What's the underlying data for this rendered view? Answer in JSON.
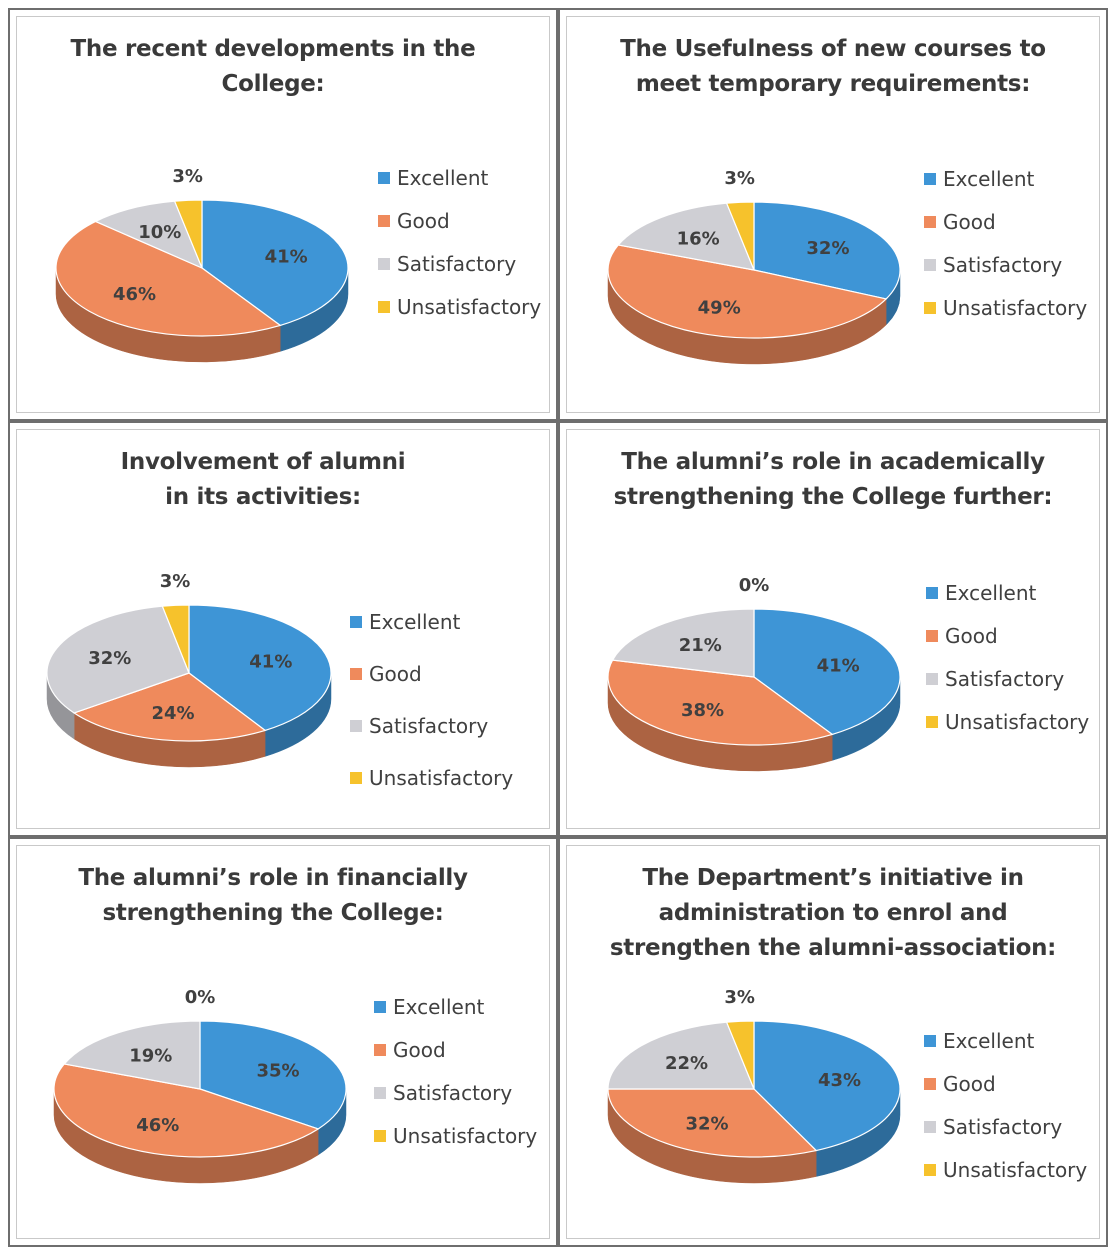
{
  "colors": {
    "Excellent": "#3e95d6",
    "Good": "#ef8a5c",
    "Satisfactory": "#cfcfd4",
    "Unsatisfactory": "#f6c22c"
  },
  "chart_data": [
    {
      "type": "pie",
      "title": "The recent developments in the College:",
      "categories": [
        "Excellent",
        "Good",
        "Satisfactory",
        "Unsatisfactory"
      ],
      "values": [
        41,
        46,
        10,
        3
      ],
      "data_labels": [
        "41%",
        "46%",
        "10%",
        "3%"
      ],
      "legend": [
        "Excellent",
        "Good",
        "Satisfactory",
        "Unsatisfactory"
      ],
      "legend_position": "right",
      "style": "3d"
    },
    {
      "type": "pie",
      "title": "The Usefulness of new courses to meet temporary requirements:",
      "categories": [
        "Excellent",
        "Good",
        "Satisfactory",
        "Unsatisfactory"
      ],
      "values": [
        32,
        49,
        16,
        3
      ],
      "data_labels": [
        "32%",
        "49%",
        "16%",
        "3%"
      ],
      "legend": [
        "Excellent",
        "Good",
        "Satisfactory",
        "Unsatisfactory"
      ],
      "legend_position": "right",
      "style": "3d"
    },
    {
      "type": "pie",
      "title": "Involvement of alumni in its activities:",
      "categories": [
        "Excellent",
        "Good",
        "Satisfactory",
        "Unsatisfactory"
      ],
      "values": [
        41,
        24,
        32,
        3
      ],
      "data_labels": [
        "41%",
        "24%",
        "32%",
        "3%"
      ],
      "legend": [
        "Excellent",
        "Good",
        "Satisfactory",
        "Unsatisfactory"
      ],
      "legend_position": "right",
      "style": "3d"
    },
    {
      "type": "pie",
      "title": "The alumni’s  role in academically strengthening the College further:",
      "categories": [
        "Excellent",
        "Good",
        "Satisfactory",
        "Unsatisfactory"
      ],
      "values": [
        41,
        38,
        21,
        0
      ],
      "data_labels": [
        "41%",
        "38%",
        "21%",
        "0%"
      ],
      "legend": [
        "Excellent",
        "Good",
        "Satisfactory",
        "Unsatisfactory"
      ],
      "legend_position": "right",
      "style": "3d"
    },
    {
      "type": "pie",
      "title": "The alumni’s role in financially strengthening the College:",
      "categories": [
        "Excellent",
        "Good",
        "Satisfactory",
        "Unsatisfactory"
      ],
      "values": [
        35,
        46,
        19,
        0
      ],
      "data_labels": [
        "35%",
        "46%",
        "19%",
        "0%"
      ],
      "legend": [
        "Excellent",
        "Good",
        "Satisfactory",
        "Unsatisfactory"
      ],
      "legend_position": "right",
      "style": "3d"
    },
    {
      "type": "pie",
      "title": "The Department’s initiative in administration to enrol and strengthen the alumni-association:",
      "categories": [
        "Excellent",
        "Good",
        "Satisfactory",
        "Unsatisfactory"
      ],
      "values": [
        43,
        32,
        22,
        3
      ],
      "data_labels": [
        "43%",
        "32%",
        "22%",
        "3%"
      ],
      "legend": [
        "Excellent",
        "Good",
        "Satisfactory",
        "Unsatisfactory"
      ],
      "legend_position": "right",
      "style": "3d"
    }
  ]
}
